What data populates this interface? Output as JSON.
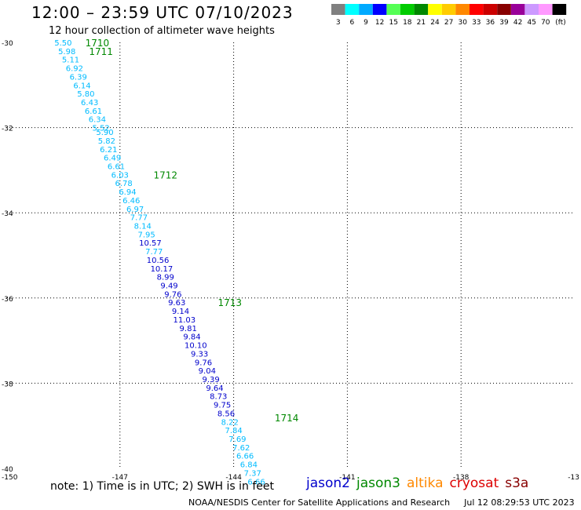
{
  "header": {
    "title": "12:00 – 23:59 UTC 07/10/2023",
    "subtitle": "12 hour collection of altimeter wave heights"
  },
  "legend": {
    "unit": "(ft)",
    "bins": [
      {
        "label": "3",
        "color": "#808080"
      },
      {
        "label": "6",
        "color": "#00ffff"
      },
      {
        "label": "9",
        "color": "#00aaff"
      },
      {
        "label": "12",
        "color": "#0000ff"
      },
      {
        "label": "15",
        "color": "#55ff55"
      },
      {
        "label": "18",
        "color": "#00cc00"
      },
      {
        "label": "21",
        "color": "#008800"
      },
      {
        "label": "24",
        "color": "#ffff00"
      },
      {
        "label": "27",
        "color": "#ffcc00"
      },
      {
        "label": "30",
        "color": "#ff8800"
      },
      {
        "label": "33",
        "color": "#ff0000"
      },
      {
        "label": "36",
        "color": "#cc0000"
      },
      {
        "label": "39",
        "color": "#880000"
      },
      {
        "label": "42",
        "color": "#990099"
      },
      {
        "label": "45",
        "color": "#cc99ff"
      },
      {
        "label": "70",
        "color": "#ff99ff"
      },
      {
        "label": "",
        "color": "#000000"
      }
    ]
  },
  "map": {
    "lat_range": [
      -40,
      -30
    ],
    "lon_range": [
      -150,
      -135
    ],
    "lat_ticks": [
      "-30",
      "-32",
      "-34",
      "-36",
      "-38",
      "-40"
    ],
    "lon_ticks": [
      "-150",
      "-147",
      "-144",
      "-141",
      "-138",
      "-13"
    ],
    "grid": "dotted"
  },
  "track": {
    "time_color": "#008800",
    "colors": {
      "light": "#00bbff",
      "dark": "#0000cc"
    },
    "points": [
      {
        "lat": -30.0,
        "lon": -148.5,
        "v": "5.50"
      },
      {
        "lat": -30.2,
        "lon": -148.4,
        "v": "5.98"
      },
      {
        "lat": -30.4,
        "lon": -148.3,
        "v": "5.11"
      },
      {
        "lat": -30.6,
        "lon": -148.2,
        "v": "6.92"
      },
      {
        "lat": -30.8,
        "lon": -148.1,
        "v": "6.39"
      },
      {
        "lat": -31.0,
        "lon": -148.0,
        "v": "6.14"
      },
      {
        "lat": -31.2,
        "lon": -147.9,
        "v": "5.80"
      },
      {
        "lat": -31.4,
        "lon": -147.8,
        "v": "6.43"
      },
      {
        "lat": -31.6,
        "lon": -147.7,
        "v": "6.61"
      },
      {
        "lat": -31.8,
        "lon": -147.6,
        "v": "6.34"
      },
      {
        "lat": -32.0,
        "lon": -147.5,
        "v": "5.52"
      },
      {
        "lat": -32.1,
        "lon": -147.4,
        "v": "5.90"
      },
      {
        "lat": -32.3,
        "lon": -147.35,
        "v": "5.82"
      },
      {
        "lat": -32.5,
        "lon": -147.3,
        "v": "6.21"
      },
      {
        "lat": -32.7,
        "lon": -147.2,
        "v": "6.49"
      },
      {
        "lat": -32.9,
        "lon": -147.1,
        "v": "6.61"
      },
      {
        "lat": -33.1,
        "lon": -147.0,
        "v": "6.03"
      },
      {
        "lat": -33.3,
        "lon": -146.9,
        "v": "6.78"
      },
      {
        "lat": -33.5,
        "lon": -146.8,
        "v": "6.94"
      },
      {
        "lat": -33.7,
        "lon": -146.7,
        "v": "6.46"
      },
      {
        "lat": -33.9,
        "lon": -146.6,
        "v": "6.97"
      },
      {
        "lat": -34.1,
        "lon": -146.5,
        "v": "7.77"
      },
      {
        "lat": -34.3,
        "lon": -146.4,
        "v": "8.14"
      },
      {
        "lat": -34.5,
        "lon": -146.3,
        "v": "7.95"
      },
      {
        "lat": -34.7,
        "lon": -146.2,
        "v": "10.57"
      },
      {
        "lat": -34.9,
        "lon": -146.1,
        "v": "7.77"
      },
      {
        "lat": -35.1,
        "lon": -146.0,
        "v": "10.56"
      },
      {
        "lat": -35.3,
        "lon": -145.9,
        "v": "10.17"
      },
      {
        "lat": -35.5,
        "lon": -145.8,
        "v": "8.99"
      },
      {
        "lat": -35.7,
        "lon": -145.7,
        "v": "9.49"
      },
      {
        "lat": -35.9,
        "lon": -145.6,
        "v": "9.76"
      },
      {
        "lat": -36.1,
        "lon": -145.5,
        "v": "9.63"
      },
      {
        "lat": -36.3,
        "lon": -145.4,
        "v": "9.14"
      },
      {
        "lat": -36.5,
        "lon": -145.3,
        "v": "11.03"
      },
      {
        "lat": -36.7,
        "lon": -145.2,
        "v": "9.81"
      },
      {
        "lat": -36.9,
        "lon": -145.1,
        "v": "9.84"
      },
      {
        "lat": -37.1,
        "lon": -145.0,
        "v": "10.10"
      },
      {
        "lat": -37.3,
        "lon": -144.9,
        "v": "9.33"
      },
      {
        "lat": -37.5,
        "lon": -144.8,
        "v": "9.76"
      },
      {
        "lat": -37.7,
        "lon": -144.7,
        "v": "9.04"
      },
      {
        "lat": -37.9,
        "lon": -144.6,
        "v": "9.39"
      },
      {
        "lat": -38.1,
        "lon": -144.5,
        "v": "9.64"
      },
      {
        "lat": -38.3,
        "lon": -144.4,
        "v": "8.73"
      },
      {
        "lat": -38.5,
        "lon": -144.3,
        "v": "9.75"
      },
      {
        "lat": -38.7,
        "lon": -144.2,
        "v": "8.56"
      },
      {
        "lat": -38.9,
        "lon": -144.1,
        "v": "8.22"
      },
      {
        "lat": -39.1,
        "lon": -144.0,
        "v": "7.84"
      },
      {
        "lat": -39.3,
        "lon": -143.9,
        "v": "7.69"
      },
      {
        "lat": -39.5,
        "lon": -143.8,
        "v": "7.62"
      },
      {
        "lat": -39.7,
        "lon": -143.7,
        "v": "6.66"
      },
      {
        "lat": -39.9,
        "lon": -143.6,
        "v": "6.84"
      },
      {
        "lat": -40.1,
        "lon": -143.5,
        "v": "7.37"
      },
      {
        "lat": -40.3,
        "lon": -143.4,
        "v": "6.66"
      }
    ],
    "times": [
      {
        "lat": -30.0,
        "lon": -147.6,
        "label": "1710"
      },
      {
        "lat": -30.2,
        "lon": -147.5,
        "label": "1711"
      },
      {
        "lat": -33.1,
        "lon": -145.8,
        "label": "1712"
      },
      {
        "lat": -36.1,
        "lon": -144.1,
        "label": "1713"
      },
      {
        "lat": -38.8,
        "lon": -142.6,
        "label": "1714"
      }
    ]
  },
  "note": "note: 1) Time is in UTC; 2) SWH is in feet",
  "satellites": [
    {
      "name": "jason2",
      "color": "#0000cc"
    },
    {
      "name": "jason3",
      "color": "#008800"
    },
    {
      "name": "altika",
      "color": "#ff8800"
    },
    {
      "name": "cryosat",
      "color": "#dd0000"
    },
    {
      "name": "s3a",
      "color": "#880000"
    }
  ],
  "footer": {
    "credit": "NOAA/NESDIS Center for Satellite Applications and Research",
    "timestamp": "Jul 12 08:29:53 UTC 2023"
  }
}
